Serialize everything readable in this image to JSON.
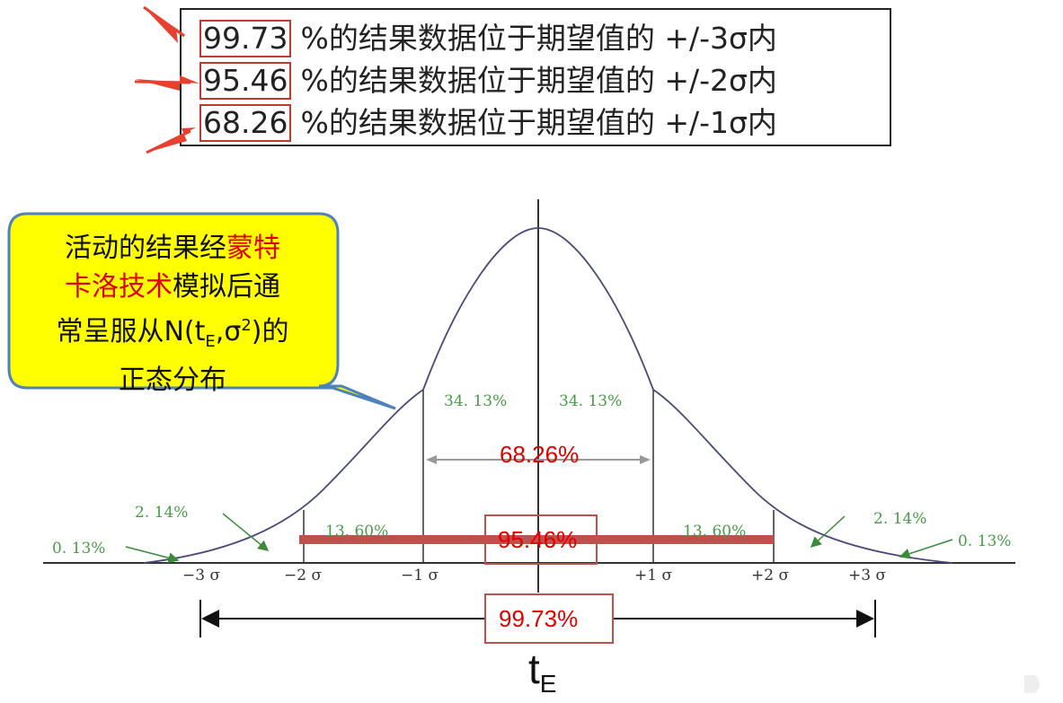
{
  "header": {
    "rows": [
      {
        "percent": "99.73",
        "text": "%的结果数据位于期望值的 +/-3σ内"
      },
      {
        "percent": "95.46",
        "text": "%的结果数据位于期望值的 +/-2σ内"
      },
      {
        "percent": "68.26",
        "text": "%的结果数据位于期望值的 +/-1σ内"
      }
    ]
  },
  "callout": {
    "line1_black": "活动的结果经",
    "line1_red": "蒙特",
    "line2_red": "卡洛技术",
    "line2_black": "模拟后通",
    "line3_a": "常呈服从N(t",
    "line3_sub": "E",
    "line3_b": ",σ",
    "line3_sup": "2",
    "line3_c": ")的",
    "line4": "正态分布"
  },
  "axis_ticks": [
    "−3 σ",
    "−2 σ",
    "−1 σ",
    "+1 σ",
    "+2 σ",
    "+3 σ"
  ],
  "region_labels": {
    "center_left": "34. 13%",
    "center_right": "34. 13%",
    "mid_left": "13. 60%",
    "mid_right": "13. 60%",
    "outer_left": "2. 14%",
    "outer_right": "2. 14%",
    "tail_left": "0. 13%",
    "tail_right": "0. 13%"
  },
  "range_labels": {
    "one_sigma": "68.26%",
    "two_sigma": "95.46%",
    "three_sigma": "99.73%"
  },
  "te_label": {
    "main": "t",
    "sub": "E"
  },
  "colors": {
    "red": "#e00000",
    "dark_red_bar": "#c0504d",
    "callout_fill": "#ffff00",
    "callout_border": "#4f81bd",
    "green_text": "#4a9a4a",
    "curve": "#4a4a7a"
  }
}
